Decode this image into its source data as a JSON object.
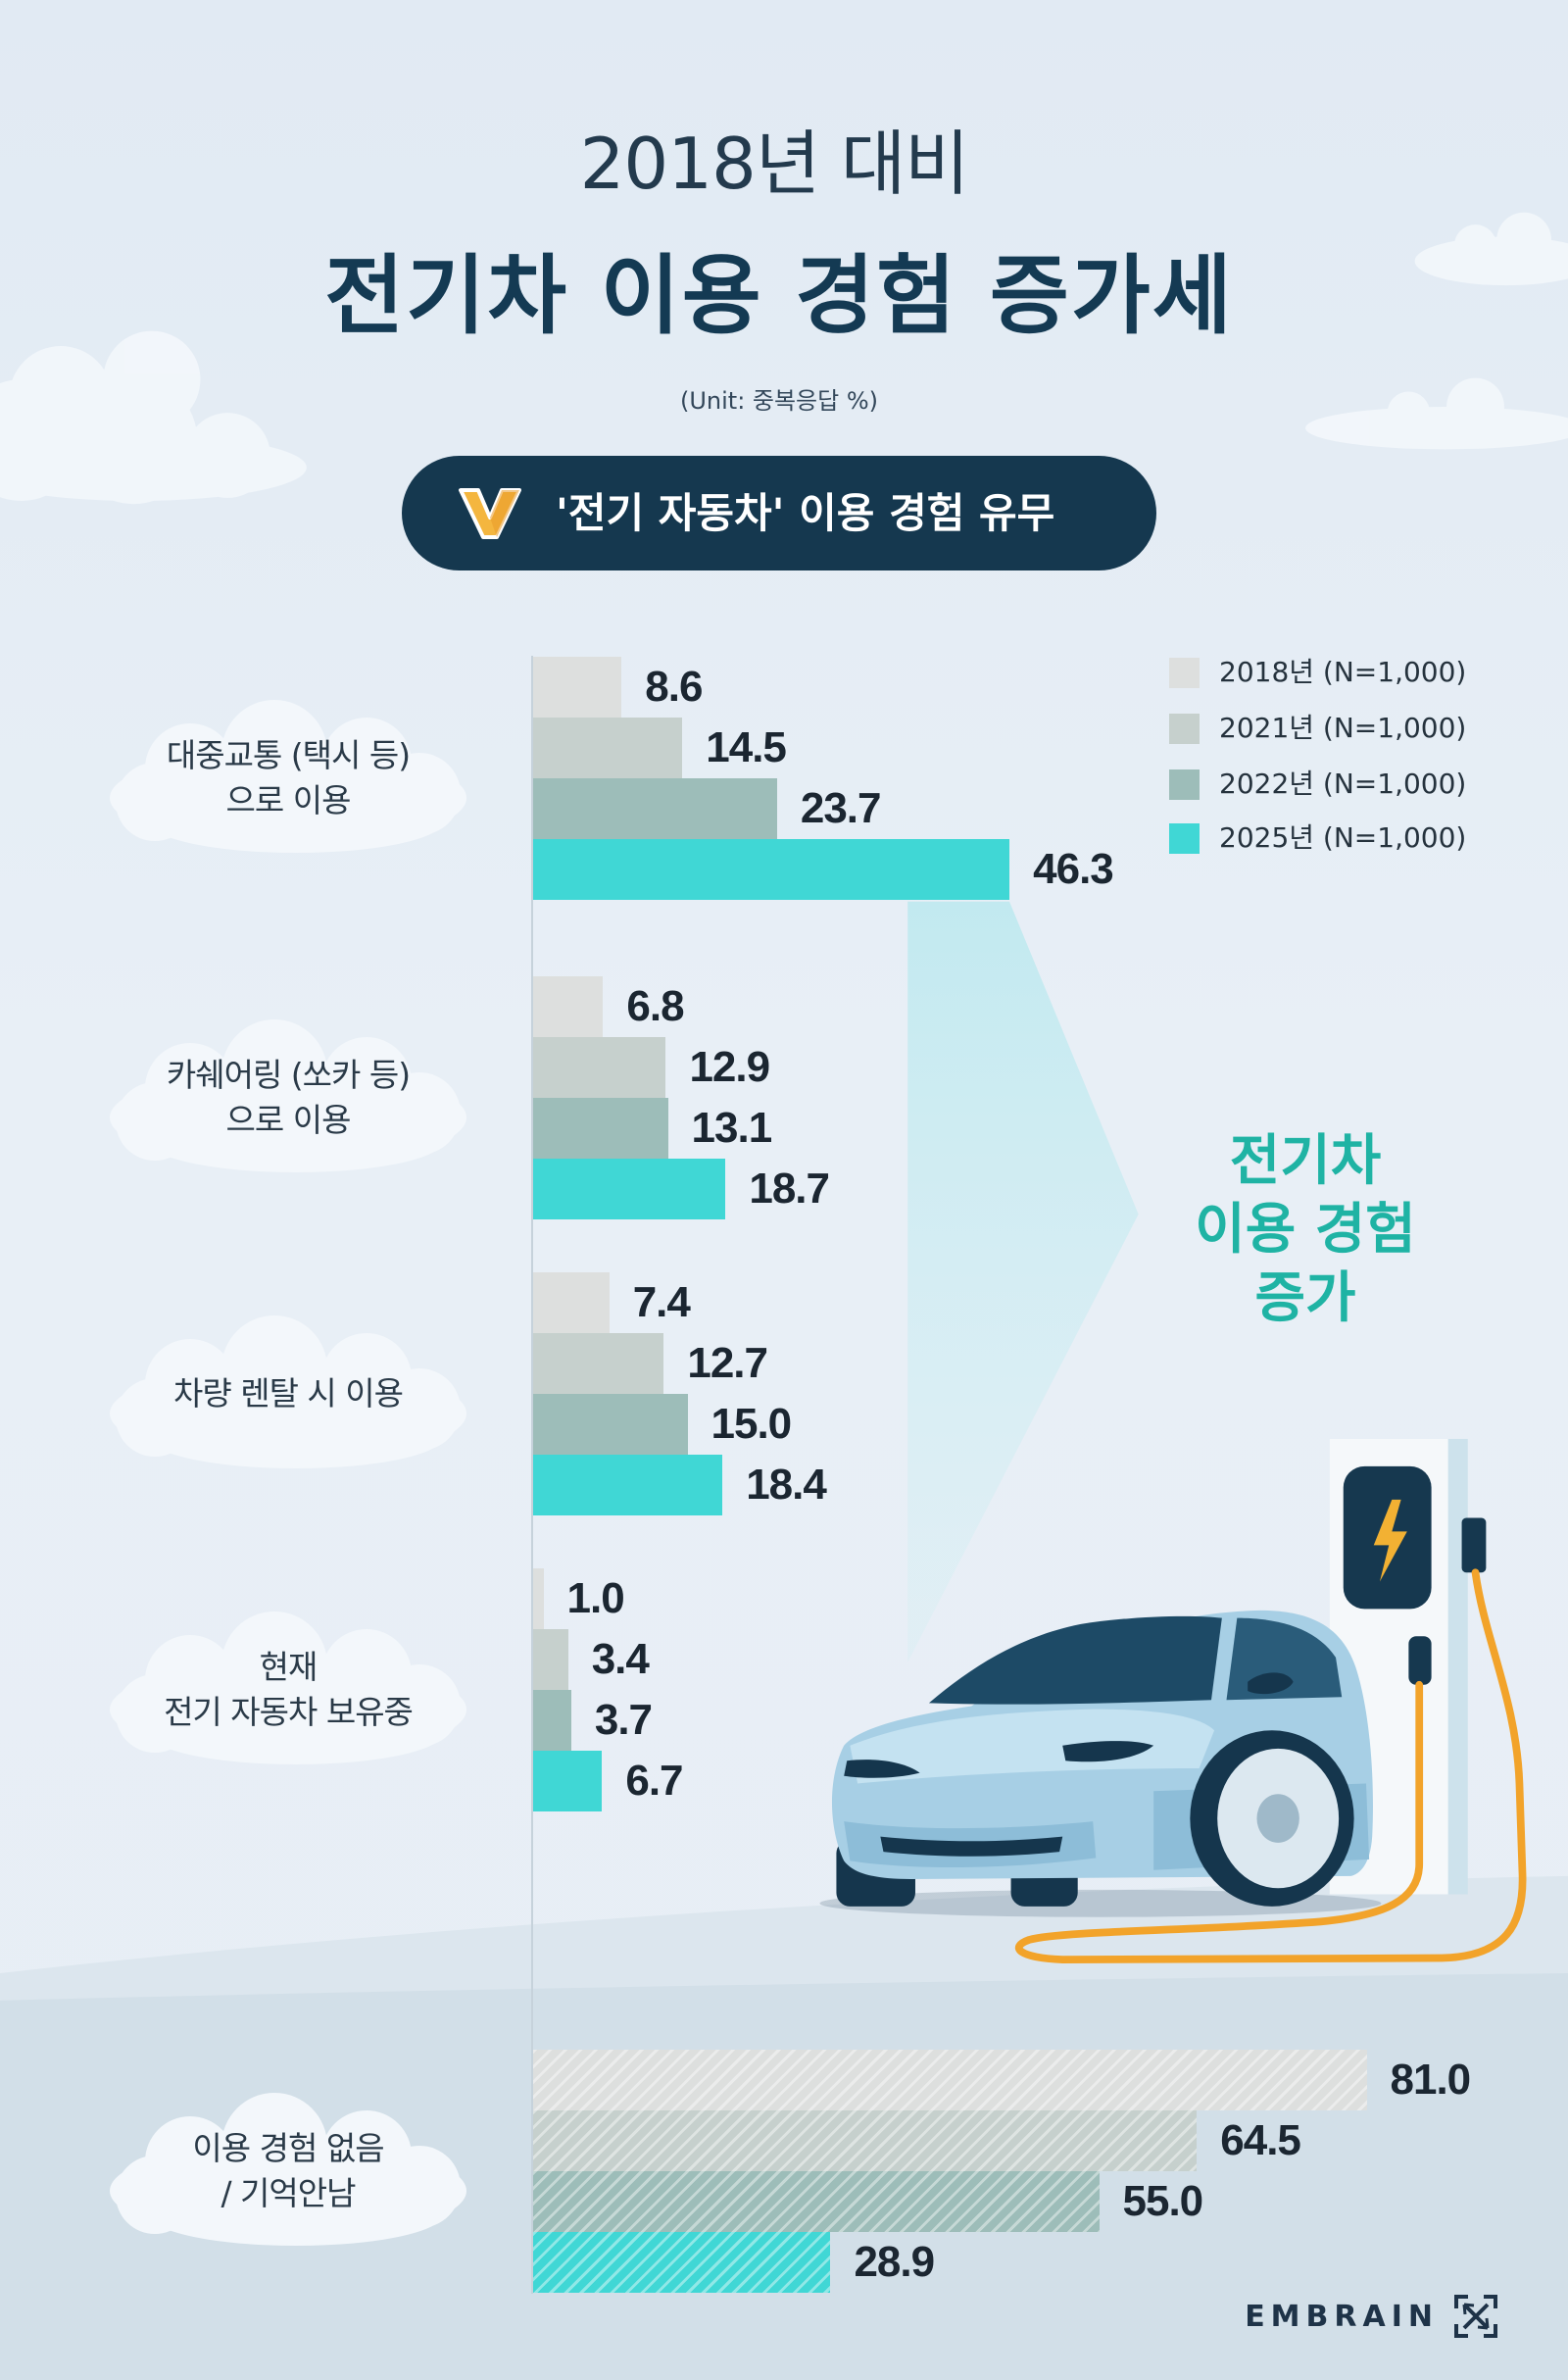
{
  "header": {
    "subtitle": "2018년 대비",
    "title": "전기차 이용 경험 증가세",
    "unit": "(Unit: 중복응답 %)"
  },
  "question": {
    "icon": "check-icon",
    "text": "'전기 자동차' 이용 경험 유무"
  },
  "callout": {
    "line1": "전기차",
    "line2": "이용 경험",
    "line3": "증가"
  },
  "brand": {
    "name": "EMBRAIN",
    "icon": "embrain-logo-icon"
  },
  "colors": {
    "background": "#e7eef5",
    "navy": "#15384f",
    "callout_teal": "#1fb3a4",
    "check_yellow": "#f4b63f",
    "cable_orange": "#f2a32a",
    "car_blue": "#a7cfe5"
  },
  "chart_data": {
    "type": "bar",
    "orientation": "horizontal",
    "categories": [
      "대중교통 (택시 등)\n으로 이용",
      "카쉐어링 (쏘카 등)\n으로 이용",
      "차량 렌탈 시 이용",
      "현재\n전기 자동차 보유중",
      "이용 경험 없음\n/ 기억안남"
    ],
    "category_patterns": [
      "solid",
      "solid",
      "solid",
      "solid",
      "hatched"
    ],
    "series": [
      {
        "name": "2018년 (N=1,000)",
        "color": "#dddfde",
        "values": [
          8.6,
          6.8,
          7.4,
          1.0,
          81.0
        ]
      },
      {
        "name": "2021년 (N=1,000)",
        "color": "#c6d0cd",
        "values": [
          14.5,
          12.9,
          12.7,
          3.4,
          64.5
        ]
      },
      {
        "name": "2022년 (N=1,000)",
        "color": "#9dbdb9",
        "values": [
          23.7,
          13.1,
          15.0,
          3.7,
          55.0
        ]
      },
      {
        "name": "2025년 (N=1,000)",
        "color": "#40d7d5",
        "values": [
          46.3,
          18.7,
          18.4,
          6.7,
          28.9
        ]
      }
    ],
    "legend": "top-right",
    "data_labels": true,
    "grid": false
  }
}
